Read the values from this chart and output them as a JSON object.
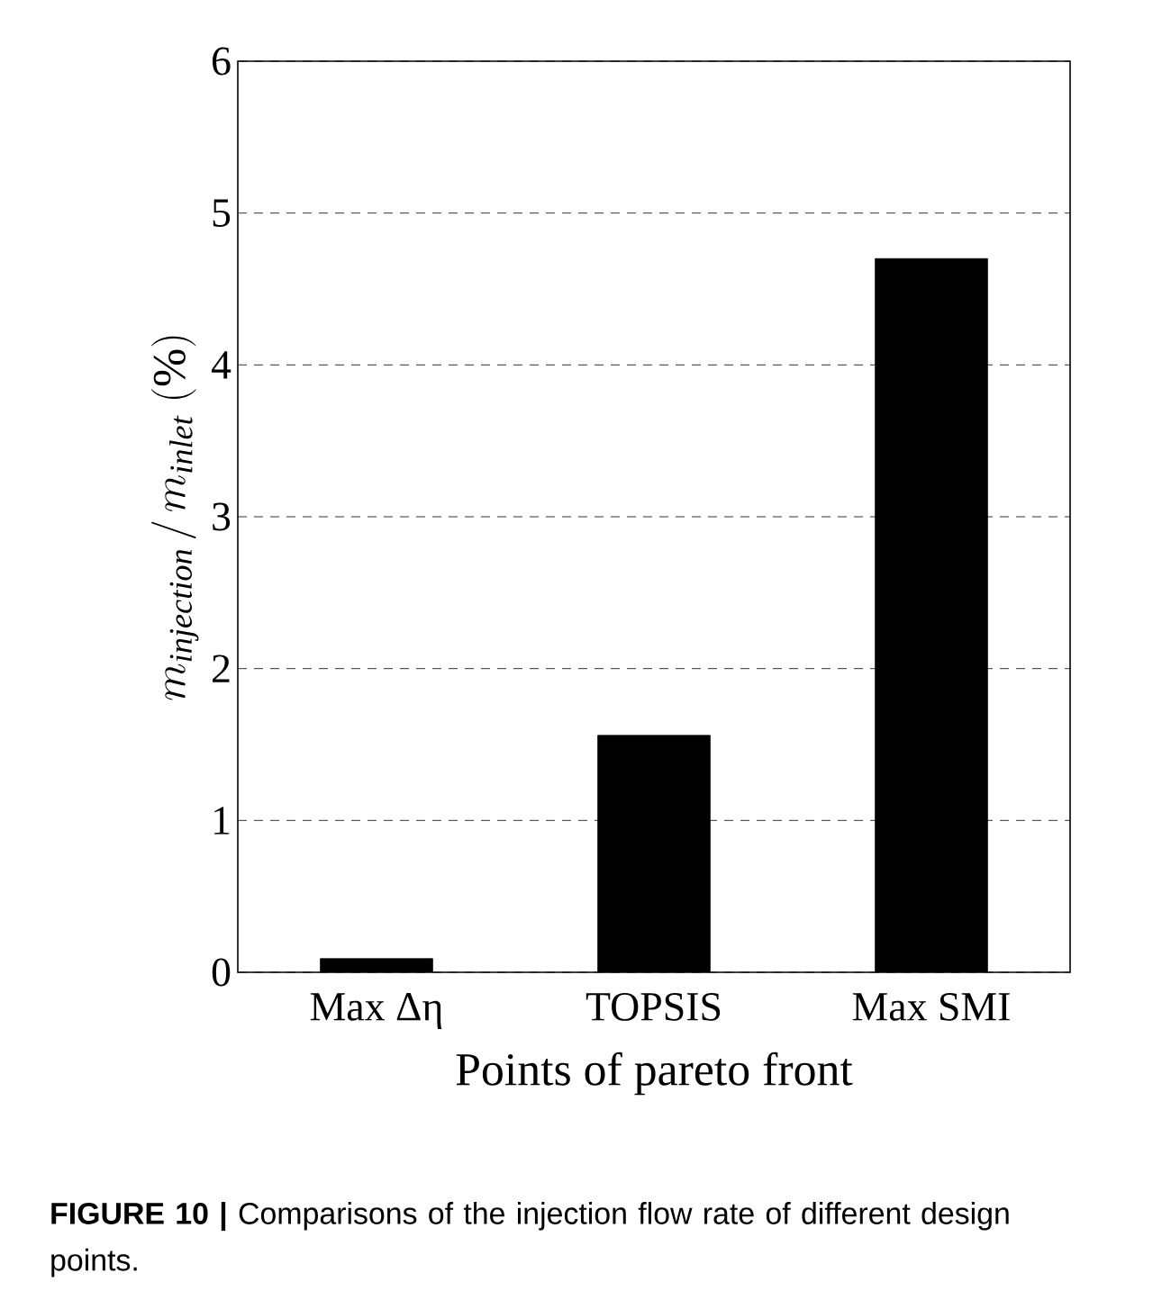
{
  "chart_data": {
    "type": "bar",
    "categories": [
      "Max Δη",
      "TOPSIS",
      "Max SMI"
    ],
    "values": [
      0.09,
      1.56,
      4.7
    ],
    "color": "#000000",
    "xlabel": "Points of pareto front",
    "ylabel": "m_{\\mathit{injection}}\\,/\\,m_{\\mathit{inlet}}\\;(\\%)",
    "ylim": [
      0,
      6
    ],
    "yticks": [
      0,
      1,
      2,
      3,
      4,
      5,
      6
    ],
    "grid": "y",
    "line_style": "dashed",
    "annotations": [
      "**FIGURE 10 |** Comparisons of the injection flow rate of different design points."
    ]
  }
}
